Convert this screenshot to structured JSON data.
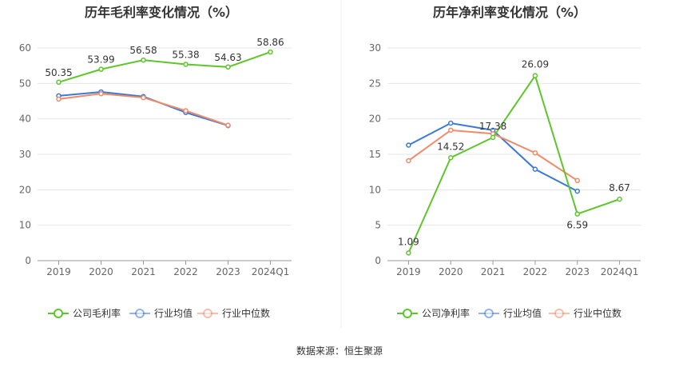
{
  "source_label": "数据来源：恒生聚源",
  "colors": {
    "company": "#5dc62b",
    "industry_avg": "#3b78d8",
    "industry_median": "#f08a68",
    "grid": "#e6e6e6",
    "axis": "#999999",
    "divider": "#eeeeee",
    "text": "#666666",
    "title": "#333333"
  },
  "chart_data": [
    {
      "type": "line",
      "title": "历年毛利率变化情况（%）",
      "categories": [
        "2019",
        "2020",
        "2021",
        "2022",
        "2023",
        "2024Q1"
      ],
      "ylim": [
        0,
        60
      ],
      "yticks": [
        0,
        10,
        20,
        30,
        40,
        50,
        60
      ],
      "series": [
        {
          "name": "公司毛利率",
          "key": "company",
          "values": [
            50.35,
            53.99,
            56.58,
            55.38,
            54.63,
            58.86
          ],
          "labels": [
            "50.35",
            "53.99",
            "56.58",
            "55.38",
            "54.63",
            "58.86"
          ]
        },
        {
          "name": "行业均值",
          "key": "industry_avg",
          "values": [
            46.5,
            47.6,
            46.3,
            41.8,
            38.1,
            null
          ]
        },
        {
          "name": "行业中位数",
          "key": "industry_median",
          "values": [
            45.6,
            47.1,
            46.0,
            42.3,
            38.2,
            null
          ]
        }
      ]
    },
    {
      "type": "line",
      "title": "历年净利率变化情况（%）",
      "categories": [
        "2019",
        "2020",
        "2021",
        "2022",
        "2023",
        "2024Q1"
      ],
      "ylim": [
        0,
        30
      ],
      "yticks": [
        0,
        5,
        10,
        15,
        20,
        25,
        30
      ],
      "series": [
        {
          "name": "公司净利率",
          "key": "company",
          "values": [
            1.09,
            14.52,
            17.38,
            26.09,
            6.59,
            8.67
          ],
          "labels": [
            "1.09",
            "14.52",
            "17.38",
            "26.09",
            "6.59",
            "8.67"
          ]
        },
        {
          "name": "行业均值",
          "key": "industry_avg",
          "values": [
            16.3,
            19.4,
            18.4,
            12.9,
            9.8,
            null
          ]
        },
        {
          "name": "行业中位数",
          "key": "industry_median",
          "values": [
            14.1,
            18.4,
            17.9,
            15.2,
            11.3,
            null
          ]
        }
      ]
    }
  ]
}
